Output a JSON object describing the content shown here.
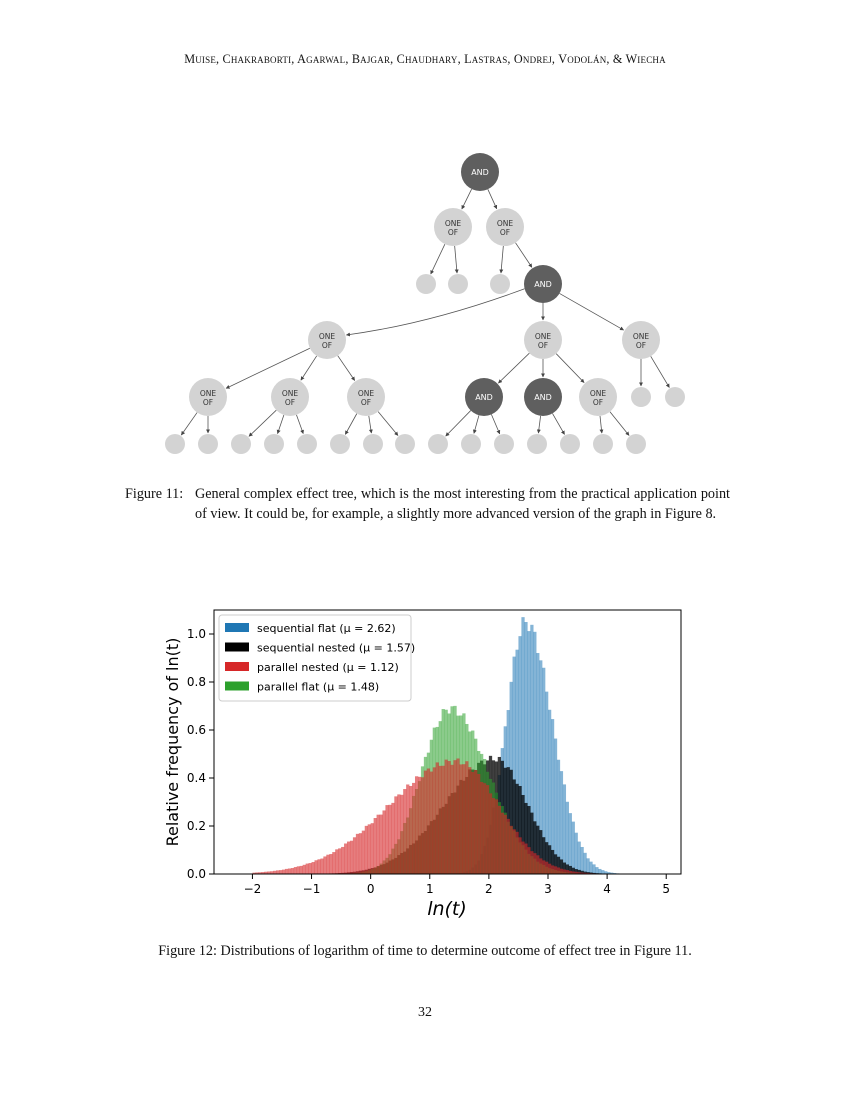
{
  "header": {
    "authors": "Muise, Chakraborti, Agarwal, Bajgar, Chaudhary, Lastras, Ondrej, Vodolán, & Wiecha"
  },
  "tree": {
    "and_label": "AND",
    "oneof_line1": "ONE",
    "oneof_line2": "OF",
    "and_color": "#5f5f5f",
    "oneof_color": "#d3d3d3"
  },
  "figure11": {
    "label": "Figure 11:",
    "text": "General complex effect tree, which is the most interesting from the practical application point of view. It could be, for example, a slightly more advanced version of the graph in Figure 8."
  },
  "figure12": {
    "caption": "Figure 12: Distributions of logarithm of time to determine outcome of effect tree in Figure 11."
  },
  "page_number": "32",
  "chart_data": {
    "type": "histogram",
    "xlabel": "ln(t)",
    "ylabel": "Relative frequency of ln(t)",
    "xlim": [
      -2.65,
      5.25
    ],
    "ylim": [
      0,
      1.1
    ],
    "xticks": [
      "−2",
      "−1",
      "0",
      "1",
      "2",
      "3",
      "4",
      "5"
    ],
    "yticks": [
      "0.0",
      "0.2",
      "0.4",
      "0.6",
      "0.8",
      "1.0"
    ],
    "legend_position": "top-left",
    "series": [
      {
        "name": "sequential flat",
        "mu_label": "(μ = 2.62)",
        "color": "#1f77b4",
        "peak": 1.05,
        "center": 2.62,
        "left_sd": 0.33,
        "right_sd": 0.45,
        "range": [
          1.0,
          4.3
        ]
      },
      {
        "name": "sequential nested",
        "mu_label": "(μ = 1.57)",
        "color": "#000000",
        "peak": 0.48,
        "center": 2.1,
        "left_sd": 0.85,
        "right_sd": 0.55,
        "range": [
          -0.7,
          4.2
        ]
      },
      {
        "name": "parallel nested",
        "mu_label": "(μ = 1.12)",
        "color": "#d62728",
        "peak": 0.47,
        "center": 1.45,
        "left_sd": 1.15,
        "right_sd": 0.72,
        "range": [
          -2.0,
          4.1
        ]
      },
      {
        "name": "parallel flat",
        "mu_label": "(μ = 1.48)",
        "color": "#2ca02c",
        "peak": 0.69,
        "center": 1.35,
        "left_sd": 0.5,
        "right_sd": 0.65,
        "range": [
          -0.5,
          4.2
        ]
      }
    ]
  }
}
